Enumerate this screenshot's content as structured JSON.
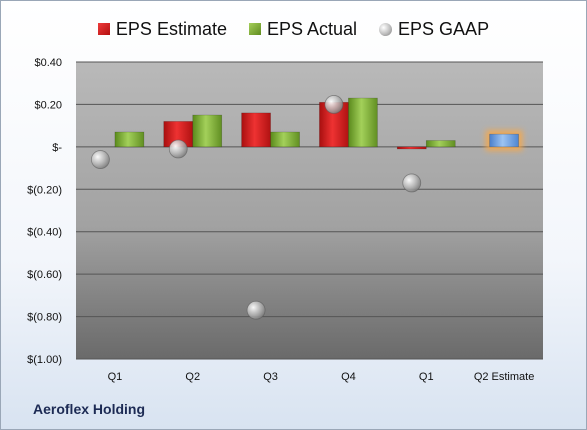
{
  "chart_data": {
    "type": "bar",
    "categories": [
      "Q1",
      "Q2",
      "Q3",
      "Q4",
      "Q1",
      "Q2 Estimate"
    ],
    "series": [
      {
        "name": "EPS Estimate",
        "kind": "bar",
        "color": "#d11f1f",
        "values": [
          null,
          0.12,
          0.16,
          0.21,
          -0.01,
          null
        ]
      },
      {
        "name": "EPS Actual",
        "kind": "bar",
        "color": "#7ead35",
        "values": [
          0.07,
          0.15,
          0.07,
          0.23,
          0.03,
          null
        ]
      },
      {
        "name": "EPS GAAP",
        "kind": "marker",
        "color": "#a0a0a0",
        "values": [
          -0.06,
          -0.01,
          -0.77,
          0.2,
          -0.17,
          null
        ]
      },
      {
        "name": "",
        "kind": "bar",
        "color": "#6fa0e0",
        "highlight": "#f7a84a",
        "values": [
          null,
          null,
          null,
          null,
          null,
          0.06
        ]
      }
    ],
    "ylim": [
      -1.0,
      0.4
    ],
    "yticks": [
      0.4,
      0.2,
      0.0,
      -0.2,
      -0.4,
      -0.6,
      -0.8,
      -1.0
    ],
    "ytick_labels": [
      "$0.40",
      "$0.20",
      "$-",
      "$(0.20)",
      "$(0.40)",
      "$(0.60)",
      "$(0.80)",
      "$(1.00)"
    ],
    "grid": true,
    "legend_position": "top",
    "plot_background": "gray gradient"
  },
  "legend": {
    "estimate": "EPS Estimate",
    "actual": "EPS Actual",
    "gaap": "EPS GAAP"
  },
  "company": "Aeroflex Holding"
}
